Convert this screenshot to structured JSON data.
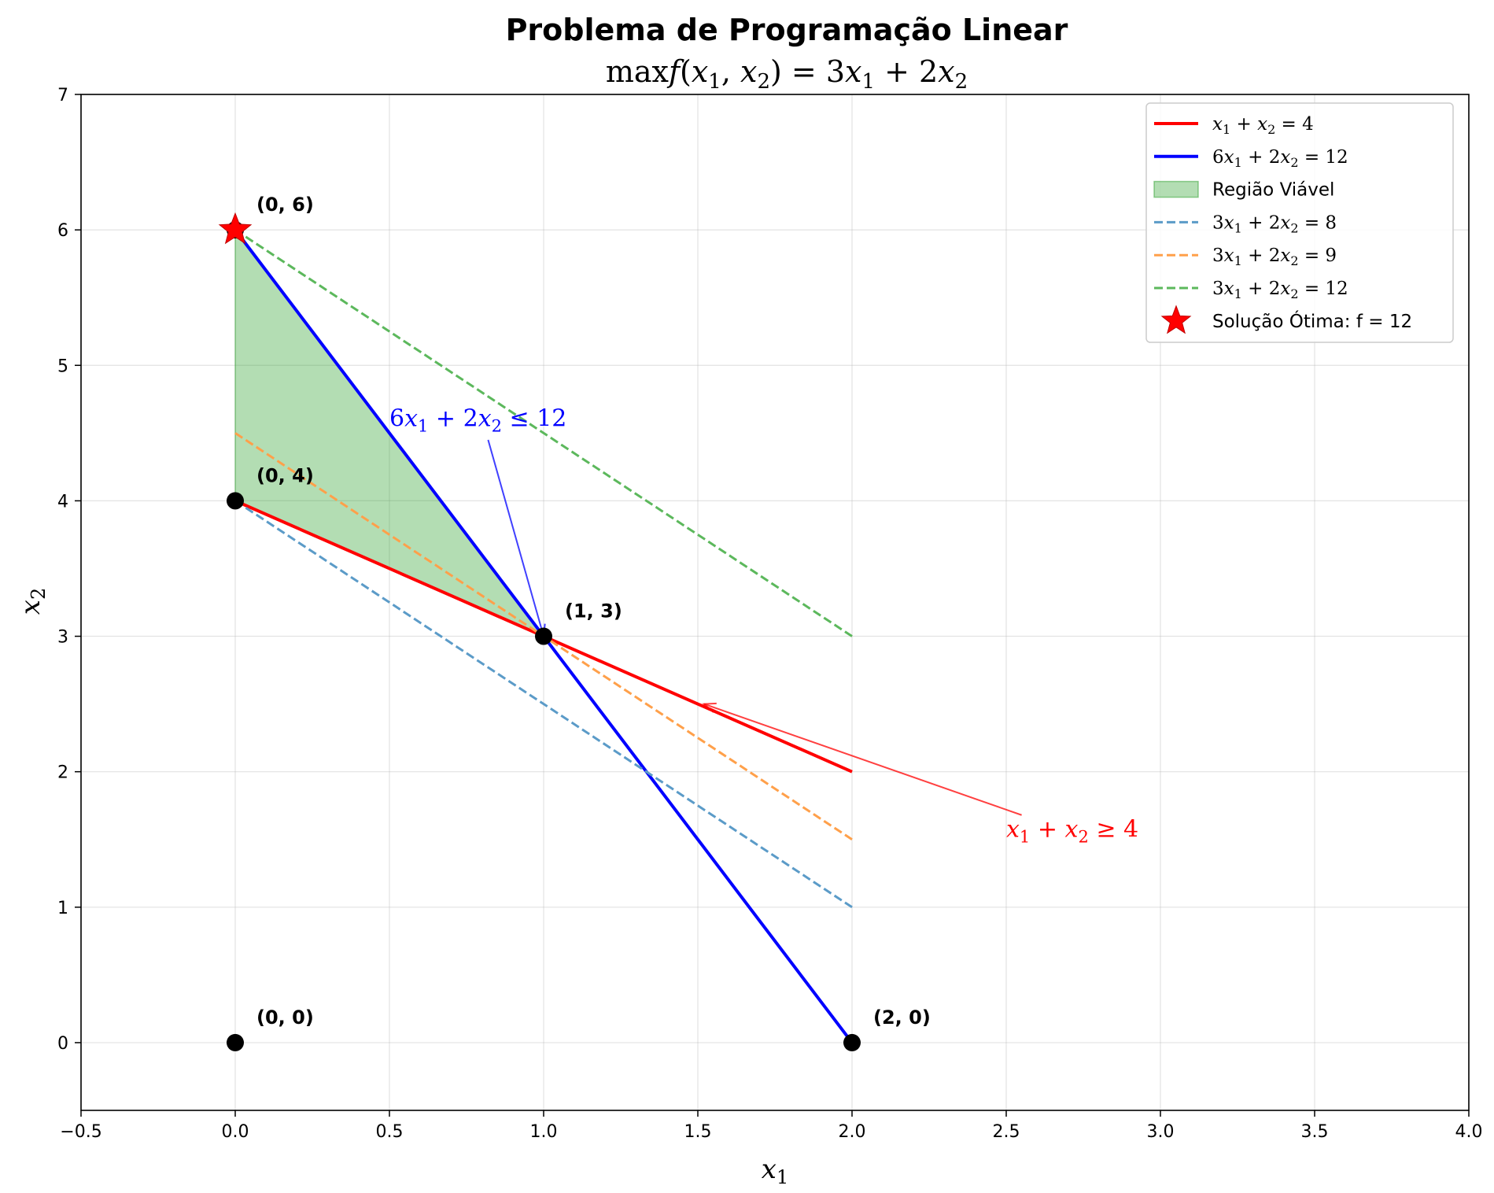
{
  "chart_data": {
    "type": "line",
    "title": "Problema de Programação Linear",
    "subtitle": {
      "pre": "max",
      "f": "f",
      "open": "(",
      "xa": "x",
      "xa_sub": "1",
      "comma": ", ",
      "xb": "x",
      "xb_sub": "2",
      "close": ") = 3",
      "xc": "x",
      "xc_sub": "1",
      "plus": " + 2",
      "xd": "x",
      "xd_sub": "2"
    },
    "xlabel": {
      "base": "x",
      "sub": "1"
    },
    "ylabel": {
      "base": "x",
      "sub": "2"
    },
    "xlim": [
      -0.5,
      4.0
    ],
    "ylim": [
      -0.5,
      7.0
    ],
    "xticks": [
      {
        "value": -0.5,
        "label": "−0.5"
      },
      {
        "value": 0.0,
        "label": "0.0"
      },
      {
        "value": 0.5,
        "label": "0.5"
      },
      {
        "value": 1.0,
        "label": "1.0"
      },
      {
        "value": 1.5,
        "label": "1.5"
      },
      {
        "value": 2.0,
        "label": "2.0"
      },
      {
        "value": 2.5,
        "label": "2.5"
      },
      {
        "value": 3.0,
        "label": "3.0"
      },
      {
        "value": 3.5,
        "label": "3.5"
      },
      {
        "value": 4.0,
        "label": "4.0"
      }
    ],
    "yticks": [
      {
        "value": 0,
        "label": "0"
      },
      {
        "value": 1,
        "label": "1"
      },
      {
        "value": 2,
        "label": "2"
      },
      {
        "value": 3,
        "label": "3"
      },
      {
        "value": 4,
        "label": "4"
      },
      {
        "value": 5,
        "label": "5"
      },
      {
        "value": 6,
        "label": "6"
      },
      {
        "value": 7,
        "label": "7"
      }
    ],
    "grid": true,
    "legend_position": "top-right",
    "feasible_region": {
      "polygon": [
        [
          0,
          6
        ],
        [
          0,
          4
        ],
        [
          1,
          3
        ]
      ],
      "color": "#2ca02c",
      "legend": "Região Viável"
    },
    "lines": [
      {
        "id": "constraint-1",
        "points": [
          [
            0,
            4
          ],
          [
            2,
            2
          ]
        ],
        "color": "#ff0000",
        "dashed": false,
        "legend": {
          "pre": "",
          "a": "x",
          "a_sub": "1",
          "mid": " + ",
          "b": "x",
          "b_sub": "2",
          "post": " = 4"
        }
      },
      {
        "id": "constraint-2",
        "points": [
          [
            0,
            6
          ],
          [
            2,
            0
          ]
        ],
        "color": "#0000ff",
        "dashed": false,
        "legend": {
          "pre": "6",
          "a": "x",
          "a_sub": "1",
          "mid": " + 2",
          "b": "x",
          "b_sub": "2",
          "post": " = 12"
        }
      },
      {
        "id": "level-8",
        "points": [
          [
            0,
            4
          ],
          [
            2,
            1
          ]
        ],
        "color": "#5b9bc8",
        "dashed": true,
        "legend": {
          "pre": "3",
          "a": "x",
          "a_sub": "1",
          "mid": " + 2",
          "b": "x",
          "b_sub": "2",
          "post": " = 8"
        }
      },
      {
        "id": "level-9",
        "points": [
          [
            0,
            4.5
          ],
          [
            2,
            1.5
          ]
        ],
        "color": "#ffa04a",
        "dashed": true,
        "legend": {
          "pre": "3",
          "a": "x",
          "a_sub": "1",
          "mid": " + 2",
          "b": "x",
          "b_sub": "2",
          "post": " = 9"
        }
      },
      {
        "id": "level-12",
        "points": [
          [
            0,
            6
          ],
          [
            2,
            3
          ]
        ],
        "color": "#5cb85c",
        "dashed": true,
        "legend": {
          "pre": "3",
          "a": "x",
          "a_sub": "1",
          "mid": " + 2",
          "b": "x",
          "b_sub": "2",
          "post": " = 12"
        }
      }
    ],
    "vertices": [
      {
        "x": 0,
        "y": 0,
        "label": "(0, 0)"
      },
      {
        "x": 2,
        "y": 0,
        "label": "(2, 0)"
      },
      {
        "x": 1,
        "y": 3,
        "label": "(1, 3)"
      },
      {
        "x": 0,
        "y": 4,
        "label": "(0, 4)"
      },
      {
        "x": 0,
        "y": 6,
        "label": "(0, 6)"
      }
    ],
    "optimum": {
      "x": 0,
      "y": 6,
      "color": "#ff0000",
      "legend": "Solução Ótima: f = 12"
    },
    "annotations": [
      {
        "id": "annot-constraint-2",
        "text": {
          "pre": "6",
          "a": "x",
          "a_sub": "1",
          "mid": " + 2",
          "b": "x",
          "b_sub": "2",
          "post": " ≤ 12"
        },
        "text_xy": [
          0.5,
          4.55
        ],
        "arrow_from": [
          0.82,
          4.45
        ],
        "arrow_to": [
          1.0,
          3.0
        ],
        "color": "#0000ff"
      },
      {
        "id": "annot-constraint-1",
        "text": {
          "pre": "",
          "a": "x",
          "a_sub": "1",
          "mid": " + ",
          "b": "x",
          "b_sub": "2",
          "post": " ≥ 4"
        },
        "text_xy": [
          2.5,
          1.52
        ],
        "arrow_from": [
          2.55,
          1.68
        ],
        "arrow_to": [
          1.52,
          2.5
        ],
        "color": "#ff0000"
      }
    ]
  }
}
